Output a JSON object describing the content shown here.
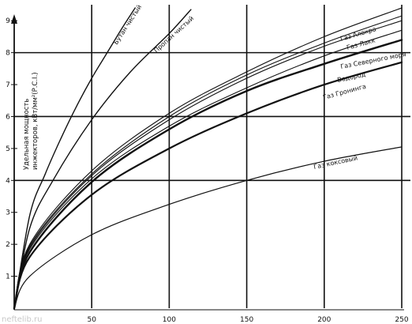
{
  "chart_data": {
    "type": "line",
    "title": "",
    "xlabel": "",
    "ylabel": "Удельная мощность инжекторов, кВт/мм²(Р.С.І.)",
    "xlim": [
      0,
      250
    ],
    "ylim": [
      0,
      9.5
    ],
    "x_ticks": [
      "50",
      "100",
      "150",
      "200",
      "250"
    ],
    "y_ticks": [
      "1",
      "2",
      "3",
      "4",
      "5",
      "6",
      "7",
      "8",
      "9"
    ],
    "grid": "major lines at x = 50, 100, 150, 200, 250 and y = 4, 6, 8",
    "series": [
      {
        "name": "Бутан чистый",
        "values": [
          [
            0,
            0.0
          ],
          [
            10,
            2.9
          ],
          [
            20,
            4.2
          ],
          [
            30,
            5.3
          ],
          [
            40,
            6.3
          ],
          [
            50,
            7.2
          ],
          [
            60,
            8.0
          ],
          [
            70,
            8.8
          ],
          [
            78,
            9.4
          ]
        ]
      },
      {
        "name": "Пропан чистый",
        "values": [
          [
            0,
            0.0
          ],
          [
            10,
            2.5
          ],
          [
            25,
            4.0
          ],
          [
            50,
            5.9
          ],
          [
            75,
            7.4
          ],
          [
            100,
            8.6
          ],
          [
            114,
            9.35
          ]
        ]
      },
      {
        "name": "Газ Алокра",
        "values": [
          [
            0,
            0.0
          ],
          [
            10,
            2.0
          ],
          [
            50,
            4.3
          ],
          [
            100,
            6.1
          ],
          [
            150,
            7.4
          ],
          [
            200,
            8.5
          ],
          [
            250,
            9.4
          ]
        ]
      },
      {
        "name": "Газ Лакк",
        "values": [
          [
            0,
            0.0
          ],
          [
            10,
            1.95
          ],
          [
            50,
            4.2
          ],
          [
            100,
            6.0
          ],
          [
            150,
            7.3
          ],
          [
            200,
            8.3
          ],
          [
            250,
            9.15
          ]
        ]
      },
      {
        "name": "Газ Северного моря",
        "values": [
          [
            0,
            0.0
          ],
          [
            10,
            1.9
          ],
          [
            50,
            4.15
          ],
          [
            100,
            5.9
          ],
          [
            150,
            7.2
          ],
          [
            200,
            8.2
          ],
          [
            250,
            9.0
          ]
        ]
      },
      {
        "name": "Водород",
        "values": [
          [
            0,
            0.0
          ],
          [
            10,
            1.85
          ],
          [
            50,
            4.05
          ],
          [
            100,
            5.7
          ],
          [
            150,
            6.9
          ],
          [
            200,
            7.9
          ],
          [
            250,
            8.7
          ]
        ]
      },
      {
        "name": "Газ Гронинга",
        "values": [
          [
            0,
            0.0
          ],
          [
            10,
            1.75
          ],
          [
            50,
            3.95
          ],
          [
            100,
            5.6
          ],
          [
            150,
            6.8
          ],
          [
            200,
            7.65
          ],
          [
            250,
            8.4
          ]
        ]
      },
      {
        "name": "Газ Гронинга",
        "values": [
          [
            0,
            0.0
          ],
          [
            10,
            1.6
          ],
          [
            50,
            3.55
          ],
          [
            100,
            5.0
          ],
          [
            150,
            6.1
          ],
          [
            200,
            7.0
          ],
          [
            250,
            7.7
          ]
        ]
      },
      {
        "name": "Газ коксовый",
        "values": [
          [
            0,
            0.0
          ],
          [
            10,
            1.0
          ],
          [
            50,
            2.3
          ],
          [
            100,
            3.25
          ],
          [
            150,
            4.0
          ],
          [
            200,
            4.6
          ],
          [
            250,
            5.05
          ]
        ]
      }
    ]
  },
  "watermark": "neftelib.ru"
}
